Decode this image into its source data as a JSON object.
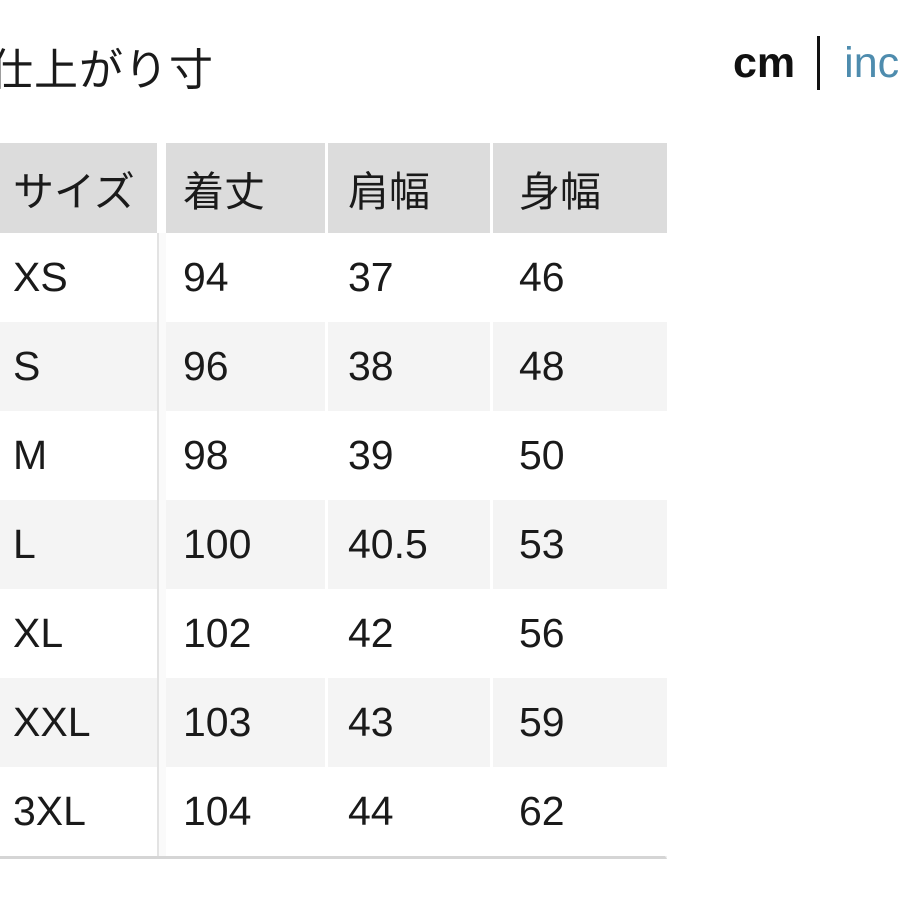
{
  "page": {
    "title": "仕上がり寸"
  },
  "unit_toggle": {
    "cm_label": "cm",
    "inch_label": "inch",
    "selected": "cm"
  },
  "table": {
    "headers": [
      "サイズ",
      "着丈",
      "肩幅",
      "身幅"
    ],
    "rows": [
      {
        "size": "XS",
        "values": [
          "94",
          "37",
          "46"
        ]
      },
      {
        "size": "S",
        "values": [
          "96",
          "38",
          "48"
        ]
      },
      {
        "size": "M",
        "values": [
          "98",
          "39",
          "50"
        ]
      },
      {
        "size": "L",
        "values": [
          "100",
          "40.5",
          "53"
        ]
      },
      {
        "size": "XL",
        "values": [
          "102",
          "42",
          "56"
        ]
      },
      {
        "size": "XXL",
        "values": [
          "103",
          "43",
          "59"
        ]
      },
      {
        "size": "3XL",
        "values": [
          "104",
          "44",
          "62"
        ]
      }
    ]
  },
  "colors": {
    "header_bg": "#dcdcdc",
    "alt_row_bg": "#f4f4f4",
    "inch_link": "#4e8cae",
    "text": "#1a1a1a",
    "table_bottom_border": "#d5d5d5"
  }
}
